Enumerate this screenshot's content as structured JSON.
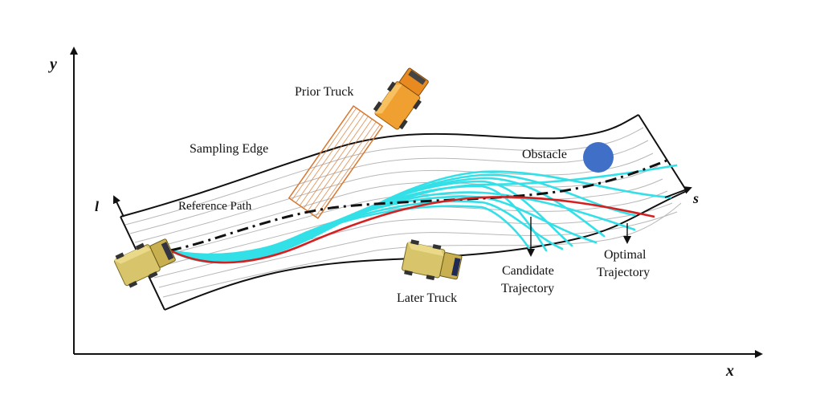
{
  "axes": {
    "x_label": "x",
    "y_label": "y",
    "s_label": "s",
    "l_label": "l"
  },
  "labels": {
    "prior_truck": "Prior Truck",
    "sampling_edge": "Sampling Edge",
    "obstacle": "Obstacle",
    "reference_path": "Reference Path",
    "later_truck": "Later Truck",
    "candidate_line1": "Candidate",
    "candidate_line2": "Trajectory",
    "optimal_line1": "Optimal",
    "optimal_line2": "Trajectory"
  },
  "colors": {
    "candidate": "#33e0e8",
    "optimal": "#d42020",
    "obstacle": "#3f6fc6",
    "prior_truck": "#f0a030",
    "later_truck": "#d8c46a",
    "hatch": "#d87830",
    "reference": "#111111",
    "lane_lines": "#b8b8b8"
  },
  "icons": {
    "prior_truck": "dump-truck-icon",
    "later_truck": "dump-truck-icon",
    "ego_truck": "dump-truck-icon"
  }
}
